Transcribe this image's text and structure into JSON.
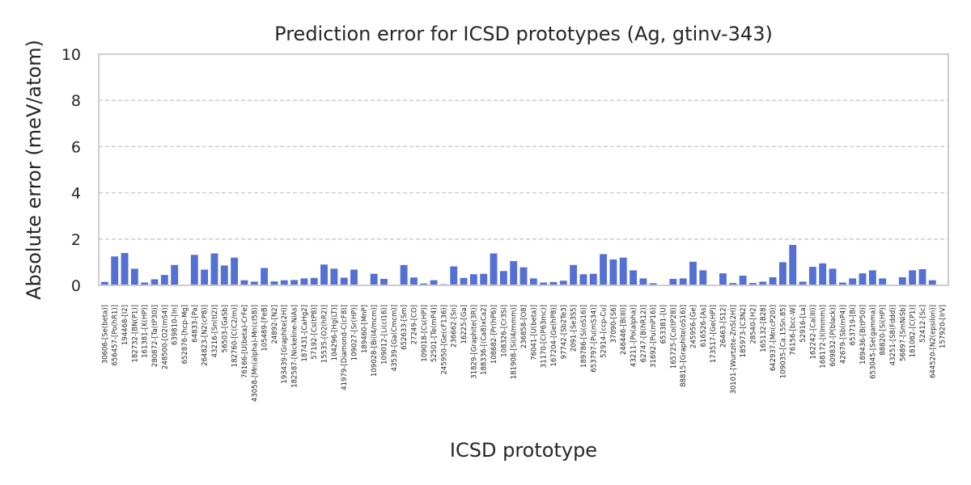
{
  "chart_data": {
    "type": "bar",
    "title": "Prediction error for ICSD prototypes (Ag, gtinv-343)",
    "xlabel": "ICSD prototype",
    "ylabel": "Absolute error (meV/atom)",
    "ylim": [
      0,
      10
    ],
    "yticks": [
      "0",
      "2",
      "4",
      "6",
      "8",
      "10"
    ],
    "grid": "y-dashed",
    "bar_color": "#5470d4",
    "categories": [
      "30606-[Se(beta)]",
      "656457-[Po(hR1)]",
      "194468-[I2]",
      "182732-[BN(P1)]",
      "161381-[K(HP)]",
      "280872-[Ta(tP30)]",
      "248500-[O2(mS4)]",
      "639810-[In]",
      "652876-[hcp-Mg]",
      "64833-[Pa]",
      "264823-[N2(cP8)]",
      "43216-[Sn(tI2)]",
      "56503-[GaSb]",
      "182760-[C(C2/m)]",
      "76166-[U(beta)-CrFe]",
      "43058-[Mn(alpha)-Mn(cI58)]",
      "105489-[FeB]",
      "24892-[N2]",
      "193439-[Graphite(2H)]",
      "182587-[Nickeline-NiAs]",
      "187431-[CaHg2]",
      "57192-[Cs(tP8)]",
      "15535-[O2(hR2)]",
      "104296-[Hg(LT)]",
      "41979-[Diamond-C(cF8)]",
      "109027-[Sr(HP)]",
      "189460-[MnP]",
      "109028-[Bi(I4/mcm)]",
      "109012-[Li(cI16)]",
      "43539-[Ga(Cmcm)]",
      "652633-[Sm]",
      "27249-[CO]",
      "109018-[Cs(HP)]",
      "52501-[Te(mP4)]",
      "245950-[Ge(cF136)]",
      "236662-[Sn]",
      "16225-[Ga]",
      "31829-[Graphite(3R)]",
      "188336-[(Ca8)xCa2]",
      "108682-[Pr(hP6)]",
      "108326-[Cr3Si]",
      "181908-[Si(I4/mmm)]",
      "236858-[O8]",
      "76041-[U(beta)]",
      "31170-[C(P63mc)]",
      "167204-[Ge(hP8)]",
      "97742-[Sb2Te3]",
      "2091-[Se3S5]",
      "189786-[Si(oS16)]",
      "653797-[Pu(mS34)]",
      "52914-[ccp-Cu]",
      "37090-[S6]",
      "246446-[B(III)]",
      "43211-[Po(alpha)]",
      "62747-[B(hR12)]",
      "31692-[Pu(mP16)]",
      "653381-[U]",
      "165725-[Co(tP28)]",
      "88815-[Graphite(oS16)]",
      "245956-[Ge]",
      "616526-[As]",
      "173517-[Ge(HP)]",
      "26463-[S12]",
      "30101-[Wurtzite-ZnS(2H)]",
      "185973-[C3N2]",
      "28540-[H2]",
      "165132-[B28]",
      "642937-[Mn(cP20)]",
      "109035-[Ca.15Sn.85]",
      "76156-[bcc-W]",
      "52916-[La]",
      "162242-[Ca(III)]",
      "168172-[I(Immm)]",
      "609832-[P(black)]",
      "42679-[Sb(mP4)]",
      "653719-[Bi]",
      "189436-[B(tP50)]",
      "653045-[Se(gamma)]",
      "88820-[Si(HP)]",
      "43251-[S8(Fddd)]",
      "56897-[SmNiSb]",
      "181082-[C(P1)]",
      "52412-[Sc]",
      "644520-[N2(epsilon)]",
      "157920-[IrV]"
    ],
    "values": [
      0.15,
      1.25,
      1.4,
      0.72,
      0.12,
      0.26,
      0.45,
      0.88,
      0.02,
      1.32,
      0.68,
      1.38,
      0.86,
      1.2,
      0.22,
      0.16,
      0.75,
      0.17,
      0.22,
      0.23,
      0.3,
      0.32,
      0.9,
      0.72,
      0.33,
      0.68,
      0.02,
      0.5,
      0.28,
      0.02,
      0.88,
      0.34,
      0.08,
      0.22,
      0.05,
      0.82,
      0.32,
      0.48,
      0.5,
      1.38,
      0.62,
      1.05,
      0.78,
      0.3,
      0.12,
      0.14,
      0.2,
      0.88,
      0.48,
      0.5,
      1.35,
      1.12,
      1.2,
      0.65,
      0.3,
      0.09,
      0.02,
      0.28,
      0.3,
      1.02,
      0.65,
      0.02,
      0.52,
      0.1,
      0.42,
      0.1,
      0.16,
      0.35,
      1.0,
      1.75,
      0.16,
      0.8,
      0.95,
      0.72,
      0.12,
      0.3,
      0.52,
      0.65,
      0.3,
      0.02,
      0.35,
      0.65,
      0.7,
      0.22,
      0.02
    ]
  }
}
